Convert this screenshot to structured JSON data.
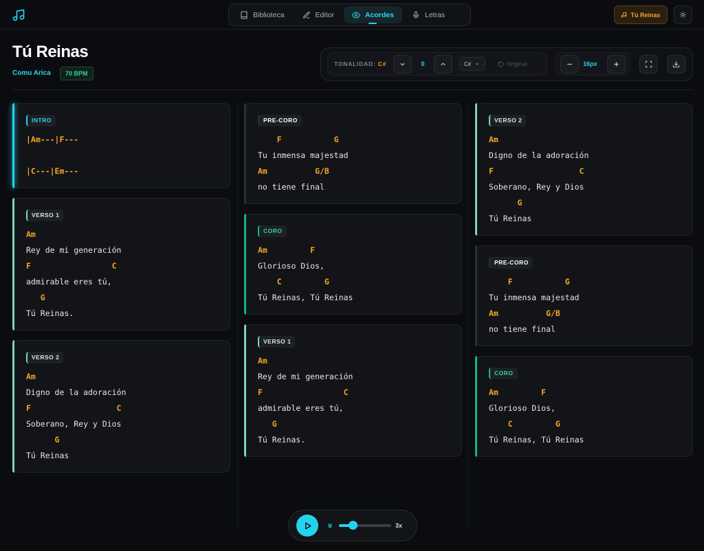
{
  "nav": {
    "tabs": [
      {
        "label": "Biblioteca",
        "icon": "book-icon"
      },
      {
        "label": "Editor",
        "icon": "pencil-icon"
      },
      {
        "label": "Acordes",
        "icon": "eye-icon"
      },
      {
        "label": "Letras",
        "icon": "mic-icon"
      }
    ],
    "active_tab": "Acordes",
    "song_button": "Tú Reinas"
  },
  "song": {
    "title": "Tú Reinas",
    "artist": "Comu Arica",
    "bpm": "70 BPM"
  },
  "controls": {
    "key_label": "TONALIDAD:",
    "key_value": "C#",
    "transpose_value": "0",
    "key_select": "C#",
    "original_label": "Original",
    "font_size": "16px"
  },
  "colors": {
    "accent_cyan": "#22d3ee",
    "accent_green": "#10b981",
    "chord": "#f5a524",
    "verse": "#7dd3c0",
    "precoro": "#2c3036"
  },
  "columns": [
    [
      {
        "section": "INTRO",
        "type": "intro",
        "lines": [
          {
            "k": "c",
            "t": "|Am---|F---"
          },
          {
            "k": "l",
            "t": " "
          },
          {
            "k": "c",
            "t": "|C---|Em---"
          }
        ]
      },
      {
        "section": "VERSO 1",
        "type": "verse",
        "lines": [
          {
            "k": "c",
            "t": "Am"
          },
          {
            "k": "l",
            "t": "Rey de mi generación"
          },
          {
            "k": "c",
            "t": "F                 C"
          },
          {
            "k": "l",
            "t": "admirable eres tú,"
          },
          {
            "k": "c",
            "t": "   G"
          },
          {
            "k": "l",
            "t": "Tú Reinas."
          }
        ]
      },
      {
        "section": "VERSO 2",
        "type": "verse",
        "lines": [
          {
            "k": "c",
            "t": "Am"
          },
          {
            "k": "l",
            "t": "Digno de la adoración"
          },
          {
            "k": "c",
            "t": "F                  C"
          },
          {
            "k": "l",
            "t": "Soberano, Rey y Dios"
          },
          {
            "k": "c",
            "t": "      G"
          },
          {
            "k": "l",
            "t": "Tú Reinas"
          }
        ]
      }
    ],
    [
      {
        "section": "PRE-CORO",
        "type": "precoro",
        "lines": [
          {
            "k": "c",
            "t": "    F           G"
          },
          {
            "k": "l",
            "t": "Tu inmensa majestad"
          },
          {
            "k": "c",
            "t": "Am          G/B"
          },
          {
            "k": "l",
            "t": "no tiene final"
          }
        ]
      },
      {
        "section": "CORO",
        "type": "chorus",
        "lines": [
          {
            "k": "c",
            "t": "Am         F"
          },
          {
            "k": "l",
            "t": "Glorioso Dios,"
          },
          {
            "k": "c",
            "t": "    C         G"
          },
          {
            "k": "l",
            "t": "Tú Reinas, Tú Reinas"
          }
        ]
      },
      {
        "section": "VERSO 1",
        "type": "verse",
        "lines": [
          {
            "k": "c",
            "t": "Am"
          },
          {
            "k": "l",
            "t": "Rey de mi generación"
          },
          {
            "k": "c",
            "t": "F                 C"
          },
          {
            "k": "l",
            "t": "admirable eres tú,"
          },
          {
            "k": "c",
            "t": "   G"
          },
          {
            "k": "l",
            "t": "Tú Reinas."
          }
        ]
      }
    ],
    [
      {
        "section": "VERSO 2",
        "type": "verse",
        "lines": [
          {
            "k": "c",
            "t": "Am"
          },
          {
            "k": "l",
            "t": "Digno de la adoración"
          },
          {
            "k": "c",
            "t": "F                  C"
          },
          {
            "k": "l",
            "t": "Soberano, Rey y Dios"
          },
          {
            "k": "c",
            "t": "      G"
          },
          {
            "k": "l",
            "t": "Tú Reinas"
          }
        ]
      },
      {
        "section": "PRE-CORO",
        "type": "precoro",
        "lines": [
          {
            "k": "c",
            "t": "    F           G"
          },
          {
            "k": "l",
            "t": "Tu inmensa majestad"
          },
          {
            "k": "c",
            "t": "Am          G/B"
          },
          {
            "k": "l",
            "t": "no tiene final"
          }
        ]
      },
      {
        "section": "CORO",
        "type": "chorus",
        "lines": [
          {
            "k": "c",
            "t": "Am         F"
          },
          {
            "k": "l",
            "t": "Glorioso Dios,"
          },
          {
            "k": "c",
            "t": "    C         G"
          },
          {
            "k": "l",
            "t": "Tú Reinas, Tú Reinas"
          }
        ]
      }
    ]
  ],
  "player": {
    "speed_label": "3x",
    "speed_fraction": 0.26
  }
}
